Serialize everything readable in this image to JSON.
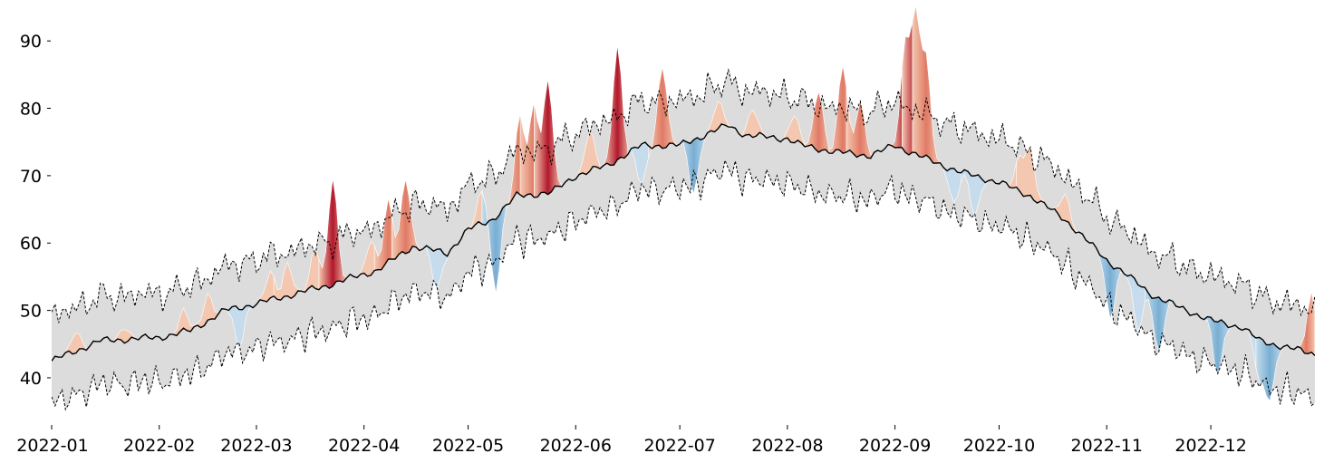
{
  "chart_data": {
    "type": "area",
    "title": "",
    "xlabel": "",
    "ylabel": "",
    "x_range": [
      "2022-01-01",
      "2022-12-31"
    ],
    "ylim": [
      33,
      95
    ],
    "grid": false,
    "legend": "none",
    "x_ticks": [
      {
        "date": "2022-01-01",
        "label": "2022-01"
      },
      {
        "date": "2022-02-01",
        "label": "2022-02"
      },
      {
        "date": "2022-03-01",
        "label": "2022-03"
      },
      {
        "date": "2022-04-01",
        "label": "2022-04"
      },
      {
        "date": "2022-05-01",
        "label": "2022-05"
      },
      {
        "date": "2022-06-01",
        "label": "2022-06"
      },
      {
        "date": "2022-07-01",
        "label": "2022-07"
      },
      {
        "date": "2022-08-01",
        "label": "2022-08"
      },
      {
        "date": "2022-09-01",
        "label": "2022-09"
      },
      {
        "date": "2022-10-01",
        "label": "2022-10"
      },
      {
        "date": "2022-11-01",
        "label": "2022-11"
      },
      {
        "date": "2022-12-01",
        "label": "2022-12"
      }
    ],
    "y_ticks": [
      40,
      50,
      60,
      70,
      80,
      90
    ],
    "band_color": "#dcdcdc",
    "above_colors": [
      "#f4c8b0",
      "#e07a65",
      "#b2182b"
    ],
    "below_colors": [
      "#c6dcec",
      "#78aed3",
      "#2166ac"
    ],
    "normal_anchors": [
      [
        "2022-01-01",
        42.5
      ],
      [
        "2022-01-15",
        45.5
      ],
      [
        "2022-02-01",
        46
      ],
      [
        "2022-02-10",
        47
      ],
      [
        "2022-02-20",
        50
      ],
      [
        "2022-03-01",
        51
      ],
      [
        "2022-03-20",
        53.5
      ],
      [
        "2022-04-05",
        56
      ],
      [
        "2022-04-15",
        59.5
      ],
      [
        "2022-04-25",
        58.5
      ],
      [
        "2022-05-01",
        62
      ],
      [
        "2022-05-08",
        63.5
      ],
      [
        "2022-05-15",
        67
      ],
      [
        "2022-05-25",
        67.5
      ],
      [
        "2022-06-01",
        70
      ],
      [
        "2022-06-10",
        71.5
      ],
      [
        "2022-06-20",
        74.5
      ],
      [
        "2022-07-01",
        74.5
      ],
      [
        "2022-07-15",
        77.5
      ],
      [
        "2022-07-20",
        76
      ],
      [
        "2022-08-01",
        75.5
      ],
      [
        "2022-08-05",
        74.5
      ],
      [
        "2022-08-15",
        73.5
      ],
      [
        "2022-08-25",
        73
      ],
      [
        "2022-09-01",
        74.5
      ],
      [
        "2022-09-10",
        72.5
      ],
      [
        "2022-09-20",
        70.5
      ],
      [
        "2022-10-01",
        69
      ],
      [
        "2022-10-10",
        67
      ],
      [
        "2022-10-20",
        63.5
      ],
      [
        "2022-11-01",
        57.5
      ],
      [
        "2022-11-15",
        52
      ],
      [
        "2022-12-01",
        48.5
      ],
      [
        "2022-12-10",
        47.5
      ],
      [
        "2022-12-15",
        45.5
      ],
      [
        "2022-12-31",
        43.5
      ]
    ],
    "band_half_width": 6.5,
    "excursions": [
      [
        "2022-01-08",
        3
      ],
      [
        "2022-01-22",
        2
      ],
      [
        "2022-02-08",
        3
      ],
      [
        "2022-02-15",
        4
      ],
      [
        "2022-02-24",
        -6
      ],
      [
        "2022-03-05",
        4
      ],
      [
        "2022-03-10",
        5
      ],
      [
        "2022-03-18",
        6
      ],
      [
        "2022-03-23",
        16
      ],
      [
        "2022-04-03",
        5
      ],
      [
        "2022-04-08",
        9
      ],
      [
        "2022-04-13",
        11
      ],
      [
        "2022-04-22",
        -6
      ],
      [
        "2022-05-05",
        5
      ],
      [
        "2022-05-09",
        -11
      ],
      [
        "2022-05-16",
        12
      ],
      [
        "2022-05-20",
        14
      ],
      [
        "2022-05-24",
        17
      ],
      [
        "2022-06-05",
        6
      ],
      [
        "2022-06-13",
        17
      ],
      [
        "2022-06-20",
        -6
      ],
      [
        "2022-06-26",
        12
      ],
      [
        "2022-07-05",
        -8
      ],
      [
        "2022-07-12",
        4
      ],
      [
        "2022-07-22",
        4
      ],
      [
        "2022-08-03",
        4
      ],
      [
        "2022-08-10",
        9
      ],
      [
        "2022-08-17",
        13
      ],
      [
        "2022-08-22",
        8
      ],
      [
        "2022-09-04",
        16
      ],
      [
        "2022-09-07",
        20
      ],
      [
        "2022-09-10",
        14
      ],
      [
        "2022-09-18",
        -5
      ],
      [
        "2022-09-24",
        -6
      ],
      [
        "2022-10-07",
        5
      ],
      [
        "2022-10-10",
        7
      ],
      [
        "2022-10-20",
        4
      ],
      [
        "2022-11-02",
        -8
      ],
      [
        "2022-11-10",
        -7
      ],
      [
        "2022-11-16",
        -8
      ],
      [
        "2022-12-03",
        -8
      ],
      [
        "2022-12-15",
        -6
      ],
      [
        "2022-12-18",
        -8
      ],
      [
        "2022-12-30",
        9
      ]
    ]
  }
}
